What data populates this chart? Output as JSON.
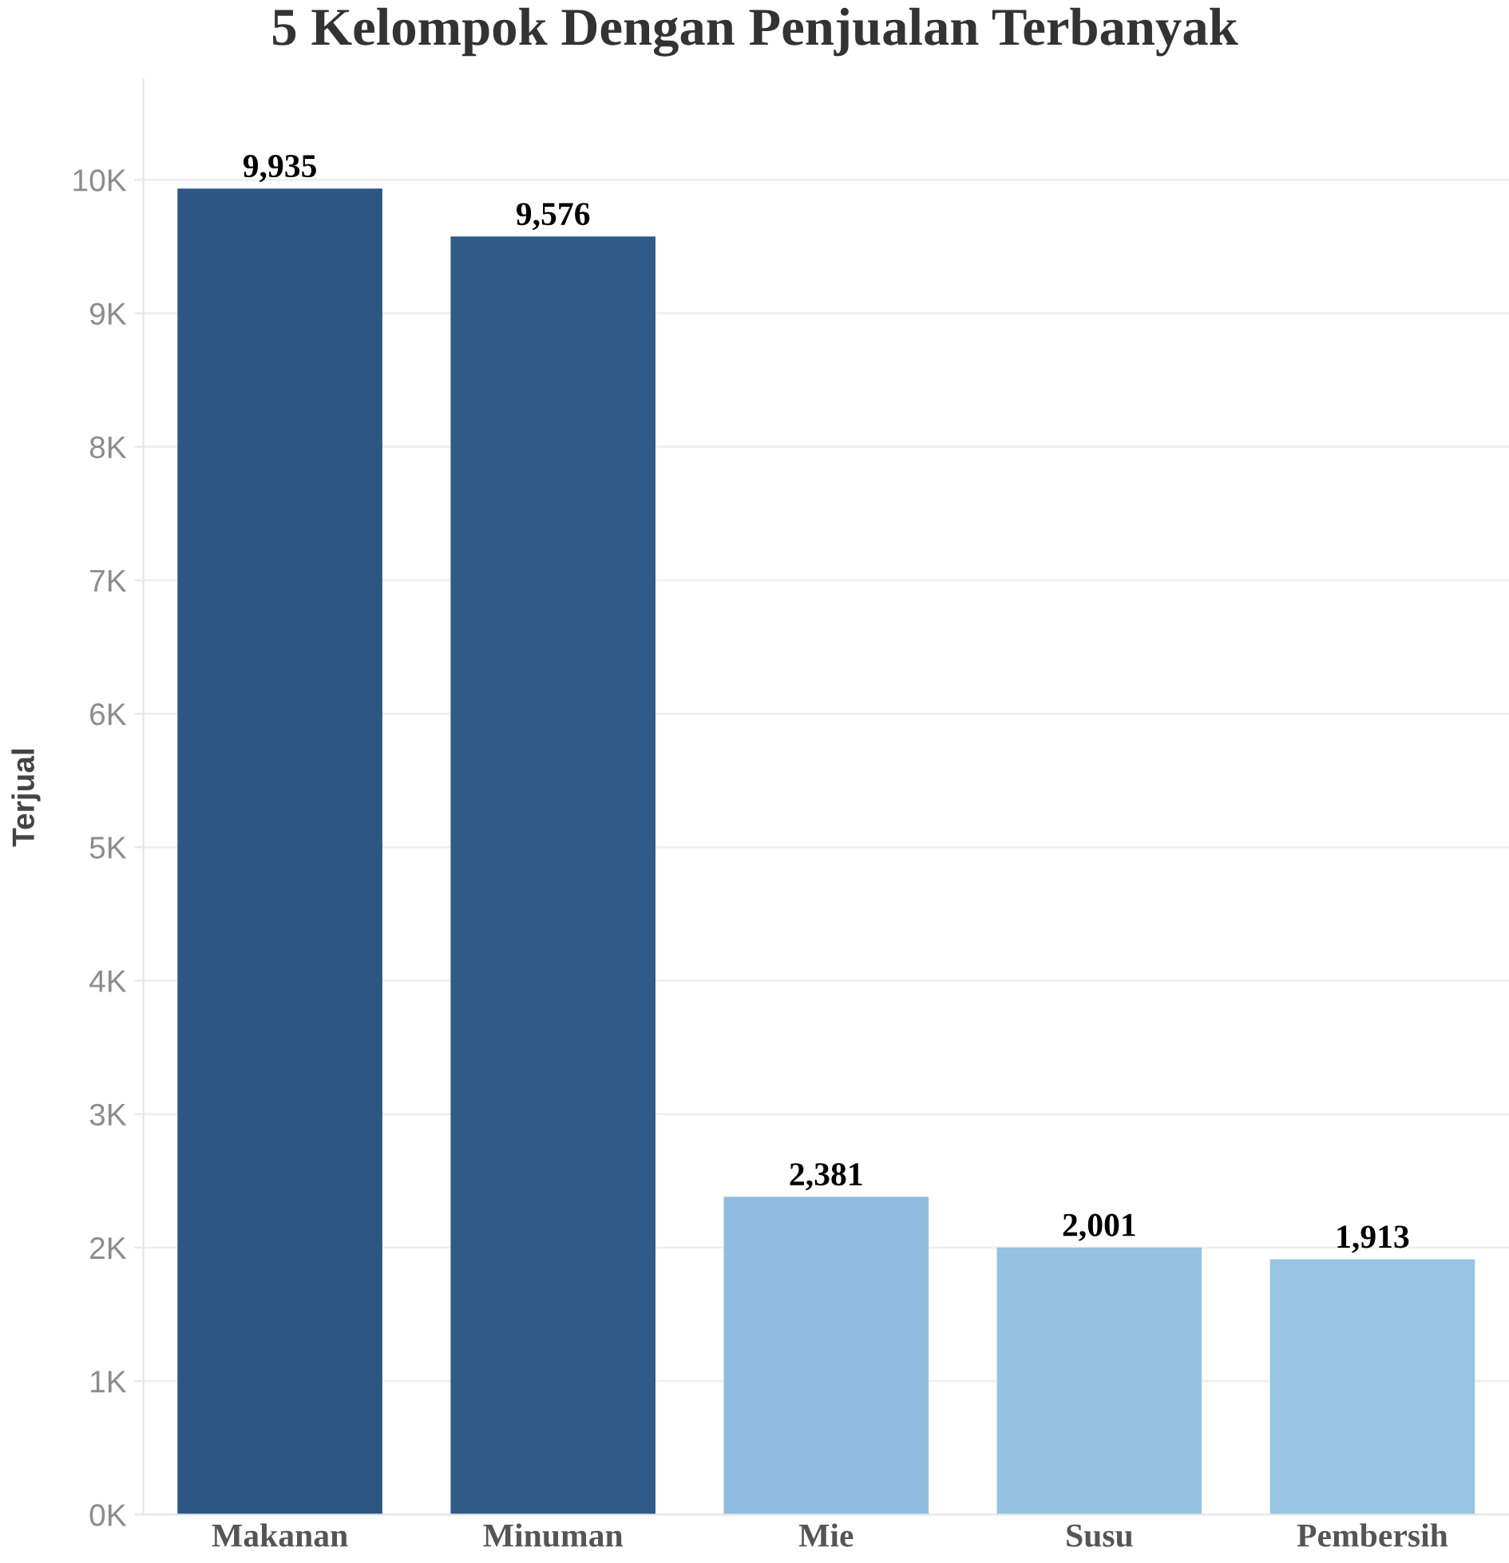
{
  "chart_data": {
    "type": "bar",
    "title": "5 Kelompok Dengan Penjualan Terbanyak",
    "ylabel": "Terjual",
    "categories": [
      "Makanan",
      "Minuman",
      "Mie",
      "Susu",
      "Pembersih"
    ],
    "values": [
      9935,
      9576,
      2381,
      2001,
      1913
    ],
    "colors": [
      "#2c5784",
      "#305b88",
      "#8fbcde",
      "#94c3e2",
      "#96c4e3"
    ],
    "value_labels": [
      "9,935",
      "9,576",
      "2,381",
      "2,001",
      "1,913"
    ],
    "ylim": [
      0,
      10750
    ],
    "yticks": [
      {
        "value": 0,
        "label": "0K"
      },
      {
        "value": 1000,
        "label": "1K"
      },
      {
        "value": 2000,
        "label": "2K"
      },
      {
        "value": 3000,
        "label": "3K"
      },
      {
        "value": 4000,
        "label": "4K"
      },
      {
        "value": 5000,
        "label": "5K"
      },
      {
        "value": 6000,
        "label": "6K"
      },
      {
        "value": 7000,
        "label": "7K"
      },
      {
        "value": 8000,
        "label": "8K"
      },
      {
        "value": 9000,
        "label": "9K"
      },
      {
        "value": 10000,
        "label": "10K"
      }
    ],
    "grid": "y",
    "legend": false
  }
}
